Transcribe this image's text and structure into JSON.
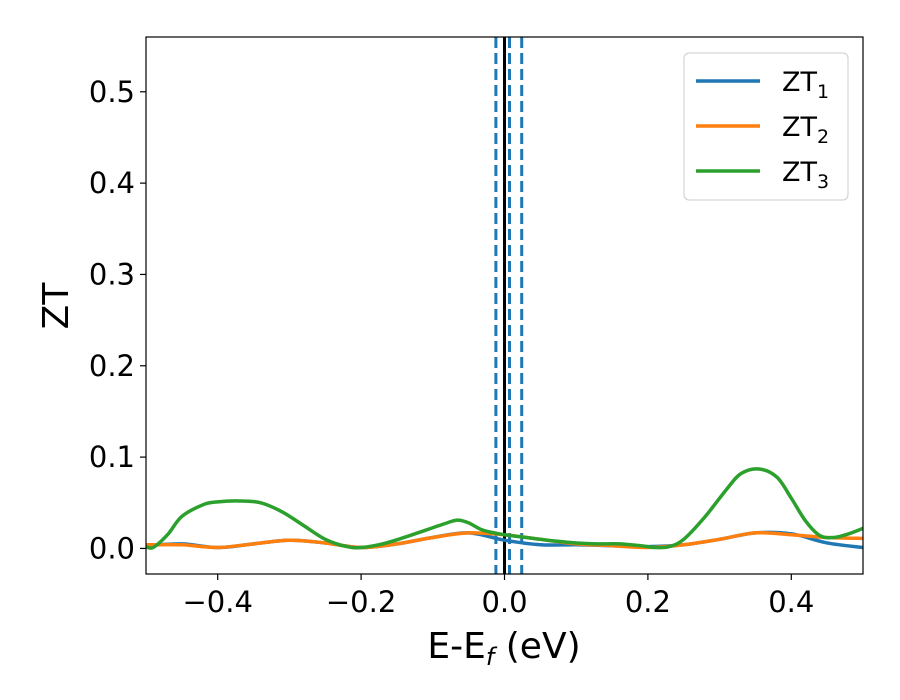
{
  "chart_data": {
    "type": "line",
    "xlabel": {
      "main": "E-E",
      "sub": "f",
      "suffix": " (eV)"
    },
    "ylabel": "ZT",
    "xlim": [
      -0.5,
      0.5
    ],
    "ylim": [
      -0.028,
      0.56
    ],
    "x_ticks": [
      -0.4,
      -0.2,
      0.0,
      0.2,
      0.4
    ],
    "x_tick_labels": [
      "−0.4",
      "−0.2",
      "0.0",
      "0.2",
      "0.4"
    ],
    "y_ticks": [
      0.0,
      0.1,
      0.2,
      0.3,
      0.4,
      0.5
    ],
    "y_tick_labels": [
      "0.0",
      "0.1",
      "0.2",
      "0.3",
      "0.4",
      "0.5"
    ],
    "grid": false,
    "legend_position": "top-right",
    "vlines": [
      {
        "x": 0.0,
        "color": "#000000",
        "style": "solid"
      },
      {
        "x": -0.012,
        "color": "#1f77b4",
        "style": "dashed"
      },
      {
        "x": 0.007,
        "color": "#1f77b4",
        "style": "dashed"
      },
      {
        "x": 0.024,
        "color": "#1f77b4",
        "style": "dashed"
      }
    ],
    "series": [
      {
        "name": "ZT",
        "sub": "1",
        "color": "#1f77b4",
        "x": [
          -0.5,
          -0.45,
          -0.4,
          -0.35,
          -0.3,
          -0.25,
          -0.2,
          -0.15,
          -0.1,
          -0.05,
          0.0,
          0.05,
          0.1,
          0.15,
          0.2,
          0.25,
          0.3,
          0.35,
          0.4,
          0.45,
          0.5
        ],
        "y": [
          0.003,
          0.005,
          0.001,
          0.005,
          0.009,
          0.006,
          0.001,
          0.005,
          0.012,
          0.017,
          0.009,
          0.004,
          0.004,
          0.003,
          0.002,
          0.004,
          0.01,
          0.017,
          0.016,
          0.006,
          0.001
        ]
      },
      {
        "name": "ZT",
        "sub": "2",
        "color": "#ff7f0e",
        "x": [
          -0.5,
          -0.45,
          -0.4,
          -0.35,
          -0.3,
          -0.25,
          -0.2,
          -0.15,
          -0.1,
          -0.05,
          0.0,
          0.05,
          0.1,
          0.15,
          0.2,
          0.25,
          0.3,
          0.35,
          0.4,
          0.45,
          0.5
        ],
        "y": [
          0.004,
          0.004,
          0.001,
          0.005,
          0.009,
          0.006,
          0.001,
          0.005,
          0.012,
          0.017,
          0.015,
          0.01,
          0.005,
          0.003,
          0.001,
          0.004,
          0.01,
          0.017,
          0.015,
          0.012,
          0.011
        ]
      },
      {
        "name": "ZT",
        "sub": "3",
        "color": "#2ca02c",
        "x": [
          -0.5,
          -0.49,
          -0.47,
          -0.45,
          -0.42,
          -0.4,
          -0.37,
          -0.34,
          -0.31,
          -0.28,
          -0.25,
          -0.22,
          -0.2,
          -0.17,
          -0.14,
          -0.11,
          -0.08,
          -0.065,
          -0.05,
          -0.03,
          0.0,
          0.03,
          0.06,
          0.1,
          0.13,
          0.16,
          0.19,
          0.21,
          0.23,
          0.25,
          0.28,
          0.31,
          0.33,
          0.355,
          0.38,
          0.4,
          0.42,
          0.44,
          0.46,
          0.48,
          0.5
        ],
        "y": [
          0.002,
          0.001,
          0.015,
          0.035,
          0.048,
          0.051,
          0.052,
          0.05,
          0.04,
          0.025,
          0.01,
          0.002,
          0.001,
          0.005,
          0.012,
          0.02,
          0.028,
          0.031,
          0.028,
          0.02,
          0.015,
          0.012,
          0.009,
          0.006,
          0.005,
          0.005,
          0.003,
          0.001,
          0.002,
          0.01,
          0.035,
          0.065,
          0.082,
          0.087,
          0.078,
          0.055,
          0.03,
          0.014,
          0.012,
          0.016,
          0.022
        ]
      }
    ]
  }
}
